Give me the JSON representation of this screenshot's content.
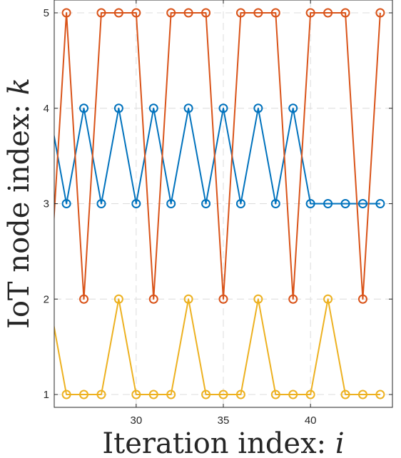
{
  "chart_data": {
    "type": "line",
    "title": "",
    "xlabel": "Iteration index: ",
    "xlabel_var": "i",
    "ylabel": "IoT node index: ",
    "ylabel_var": "k",
    "xlim": [
      25.3,
      44.7
    ],
    "ylim": [
      0.9,
      5.1
    ],
    "xticks": [
      30,
      35,
      40
    ],
    "yticks": [
      1,
      2,
      3,
      4,
      5
    ],
    "grid": true,
    "legend": "none",
    "series": [
      {
        "color": "#0072BD",
        "x": [
          25,
          26,
          27,
          28,
          29,
          30,
          31,
          32,
          33,
          34,
          35,
          36,
          37,
          38,
          39,
          40,
          41,
          42,
          43,
          44
        ],
        "y": [
          4,
          3,
          4,
          3,
          4,
          3,
          4,
          3,
          4,
          3,
          4,
          3,
          4,
          3,
          4,
          3,
          3,
          3,
          3,
          3
        ]
      },
      {
        "color": "#D95319",
        "x": [
          25,
          26,
          27,
          28,
          29,
          30,
          31,
          32,
          33,
          34,
          35,
          36,
          37,
          38,
          39,
          40,
          41,
          42,
          43,
          44
        ],
        "y": [
          2,
          5,
          2,
          5,
          5,
          5,
          2,
          5,
          5,
          5,
          2,
          5,
          5,
          5,
          2,
          5,
          5,
          5,
          2,
          5
        ]
      },
      {
        "color": "#EDB120",
        "x": [
          25,
          26,
          27,
          28,
          29,
          30,
          31,
          32,
          33,
          34,
          35,
          36,
          37,
          38,
          39,
          40,
          41,
          42,
          43,
          44
        ],
        "y": [
          2,
          1,
          1,
          1,
          2,
          1,
          1,
          1,
          2,
          1,
          1,
          1,
          2,
          1,
          1,
          1,
          2,
          1,
          1,
          1
        ]
      }
    ]
  }
}
